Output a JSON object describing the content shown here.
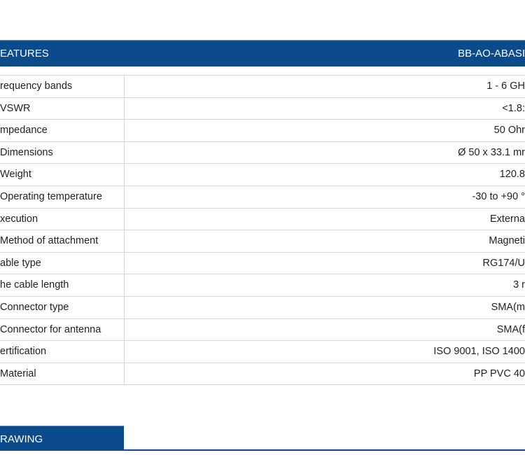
{
  "header": {
    "title": "EATURES",
    "model": "BB-AO-ABASI"
  },
  "rows": [
    {
      "label": "requency bands",
      "value": "1 - 6 GH"
    },
    {
      "label": "VSWR",
      "value": "<1.8:"
    },
    {
      "label": "mpedance",
      "value": "50 Ohr"
    },
    {
      "label": "Dimensions",
      "value": "Ø 50 x 33.1 mr"
    },
    {
      "label": "Weight",
      "value": "120.8"
    },
    {
      "label": "Operating temperature",
      "value": "-30 to +90 ° "
    },
    {
      "label": "xecution",
      "value": "Externa"
    },
    {
      "label": "Method of attachment",
      "value": "Magneti"
    },
    {
      "label": "able type",
      "value": "RG174/U"
    },
    {
      "label": "he cable length",
      "value": "3 r"
    },
    {
      "label": "Connector type",
      "value": "SMA(m"
    },
    {
      "label": "Connector for antenna",
      "value": "SMA(f"
    },
    {
      "label": "ertification",
      "value": "ISO 9001, ISO 1400"
    },
    {
      "label": "Material",
      "value": "PP PVC 40"
    }
  ],
  "drawing": {
    "title": "RAWING"
  },
  "colors": {
    "accent": "#0b4a8b"
  }
}
